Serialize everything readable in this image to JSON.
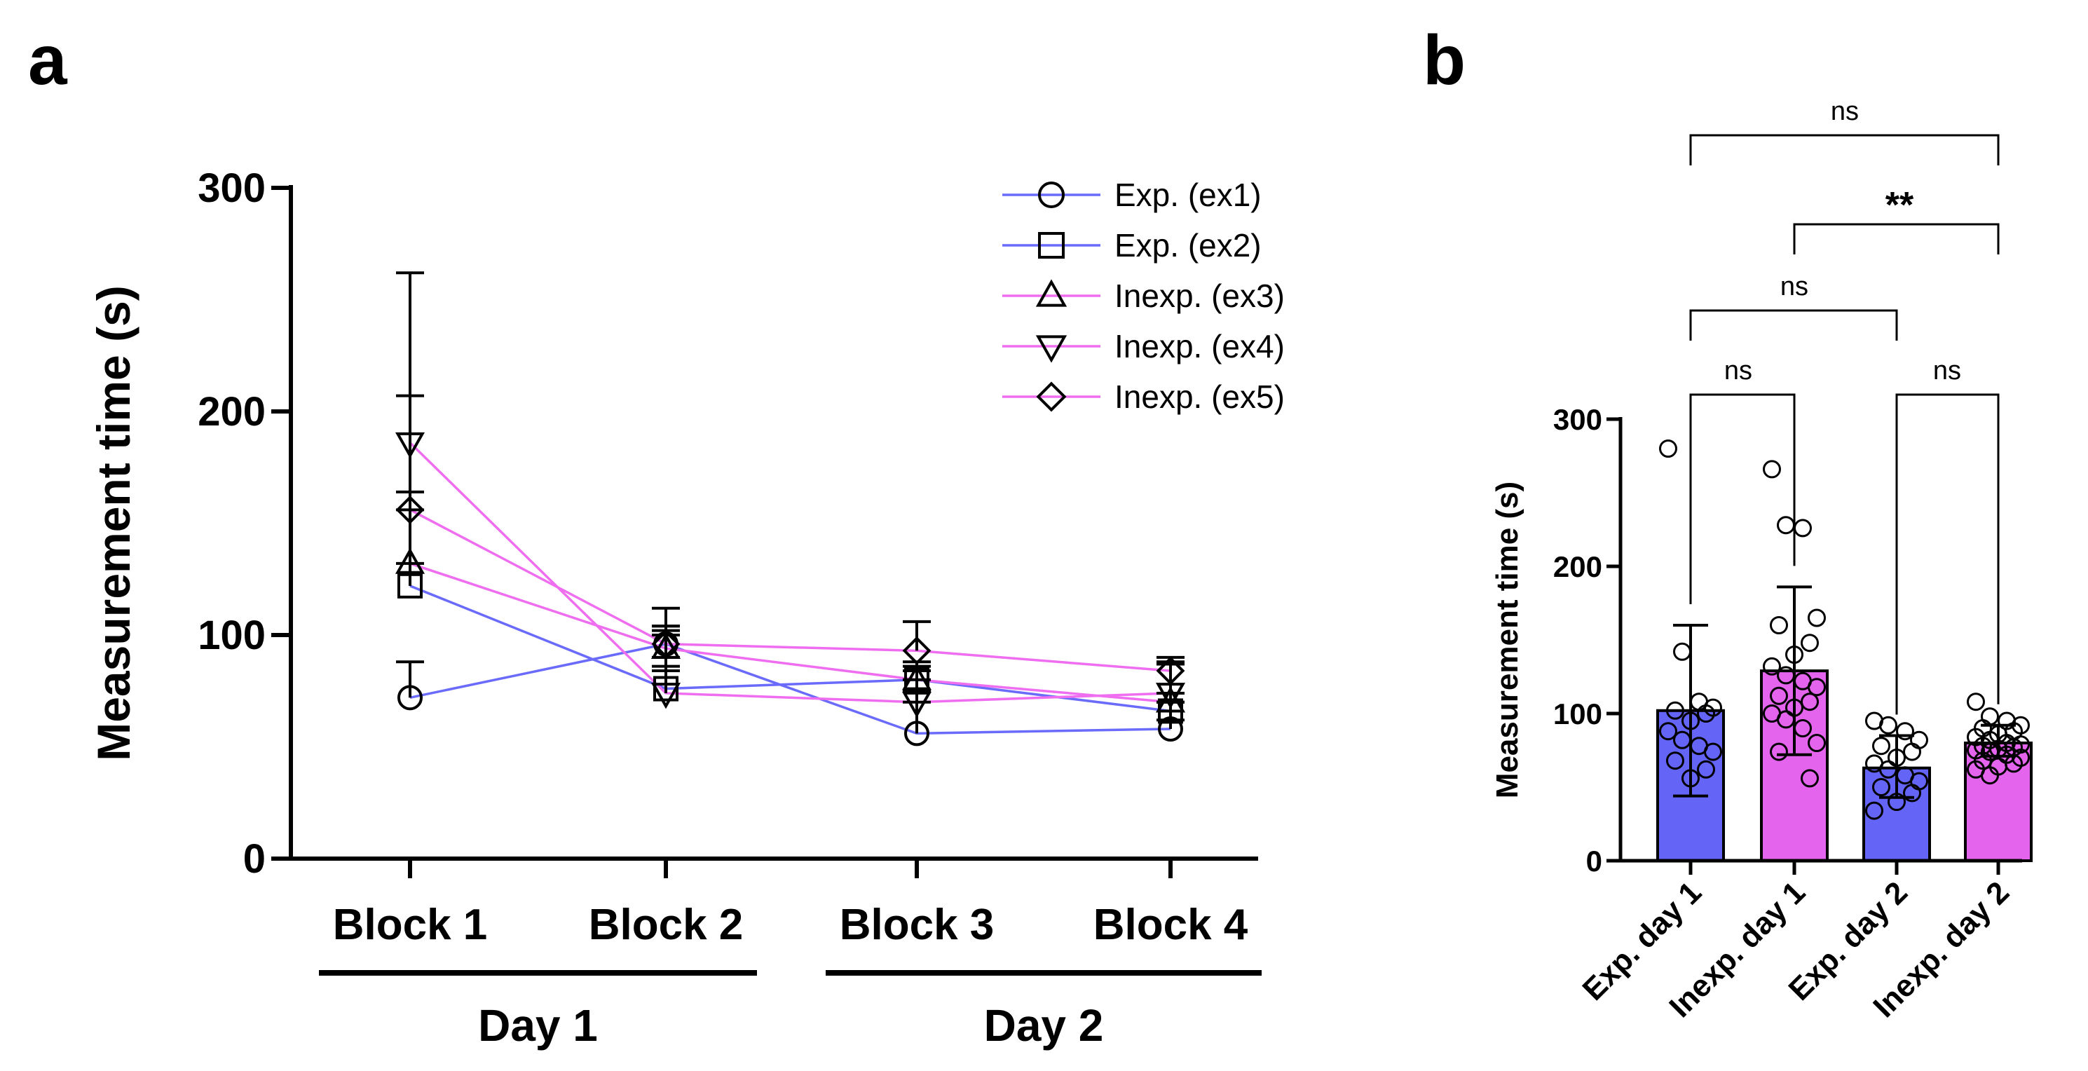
{
  "panel_a_letter": "a",
  "panel_b_letter": "b",
  "colors": {
    "experienced": "#6b6bfb",
    "inexperienced": "#ef6ef0",
    "bar_exp": "#6464f7",
    "bar_inexp": "#e464ee",
    "axis": "#000000"
  },
  "chart_data": [
    {
      "type": "line",
      "title": "",
      "xlabel": "",
      "ylabel": "Measurement time (s)",
      "ylim": [
        0,
        300
      ],
      "yticks": [
        "0",
        "100",
        "200",
        "300"
      ],
      "categories": [
        "Block 1",
        "Block 2",
        "Block 3",
        "Block 4"
      ],
      "groups": [
        {
          "label": "Day 1",
          "categories": [
            "Block 1",
            "Block 2"
          ]
        },
        {
          "label": "Day 2",
          "categories": [
            "Block 3",
            "Block 4"
          ]
        }
      ],
      "legend_position": "top-right",
      "series": [
        {
          "name": "Exp. (ex1)",
          "marker": "circle",
          "group": "experienced",
          "values": [
            72,
            96,
            56,
            58
          ],
          "err_upper": [
            88,
            100,
            88,
            88
          ],
          "err_lower": [
            72,
            90,
            56,
            58
          ]
        },
        {
          "name": "Exp. (ex2)",
          "marker": "square",
          "group": "experienced",
          "values": [
            122,
            76,
            80,
            66
          ],
          "err_upper": [
            262,
            112,
            86,
            87
          ],
          "err_lower": [
            122,
            76,
            75,
            62
          ]
        },
        {
          "name": "Inexp. (ex3)",
          "marker": "triangle-up",
          "group": "inexperienced",
          "values": [
            132,
            94,
            80,
            70
          ],
          "err_upper": [
            164,
            102,
            80,
            70
          ],
          "err_lower": [
            132,
            84,
            70,
            70
          ]
        },
        {
          "name": "Inexp. (ex4)",
          "marker": "triangle-down",
          "group": "inexperienced",
          "values": [
            186,
            74,
            70,
            74
          ],
          "err_upper": [
            207,
            104,
            84,
            74
          ],
          "err_lower": [
            186,
            74,
            70,
            70
          ]
        },
        {
          "name": "Inexp. (ex5)",
          "marker": "diamond",
          "group": "inexperienced",
          "values": [
            156,
            96,
            93,
            84
          ],
          "err_upper": [
            156,
            104,
            106,
            90
          ],
          "err_lower": [
            132,
            86,
            93,
            84
          ]
        }
      ]
    },
    {
      "type": "bar",
      "title": "",
      "xlabel": "",
      "ylabel": "Measurement time (s)",
      "ylim": [
        0,
        300
      ],
      "yticks": [
        "0",
        "100",
        "200",
        "300"
      ],
      "categories": [
        "Exp. day 1",
        "Inexp. day 1",
        "Exp. day 2",
        "Inexp. day 2"
      ],
      "values": [
        102,
        129,
        63,
        80
      ],
      "err_upper": [
        160,
        186,
        85,
        92
      ],
      "err_lower": [
        44,
        72,
        43,
        71
      ],
      "bar_groups": [
        "experienced",
        "inexperienced",
        "experienced",
        "inexperienced"
      ],
      "points": [
        [
          280,
          142,
          108,
          104,
          102,
          100,
          95,
          88,
          82,
          78,
          74,
          68,
          62,
          56
        ],
        [
          266,
          228,
          226,
          165,
          160,
          148,
          140,
          132,
          126,
          122,
          118,
          112,
          108,
          104,
          100,
          96,
          90,
          80,
          74,
          56
        ],
        [
          95,
          92,
          88,
          82,
          78,
          74,
          70,
          66,
          62,
          58,
          54,
          50,
          46,
          40,
          34
        ],
        [
          108,
          98,
          95,
          92,
          90,
          88,
          86,
          84,
          82,
          80,
          79,
          78,
          77,
          76,
          75,
          74,
          72,
          70,
          68,
          66,
          64,
          62,
          58
        ]
      ],
      "comparisons": [
        {
          "pair": [
            "Exp. day 1",
            "Inexp. day 1"
          ],
          "label": "ns"
        },
        {
          "pair": [
            "Exp. day 2",
            "Inexp. day 2"
          ],
          "label": "ns"
        },
        {
          "pair": [
            "Exp. day 1",
            "Exp. day 2"
          ],
          "label": "ns"
        },
        {
          "pair": [
            "Inexp. day 1",
            "Inexp. day 2"
          ],
          "label": "**"
        },
        {
          "pair": [
            "Exp. day 1",
            "Inexp. day 2"
          ],
          "label": "ns"
        }
      ]
    }
  ]
}
